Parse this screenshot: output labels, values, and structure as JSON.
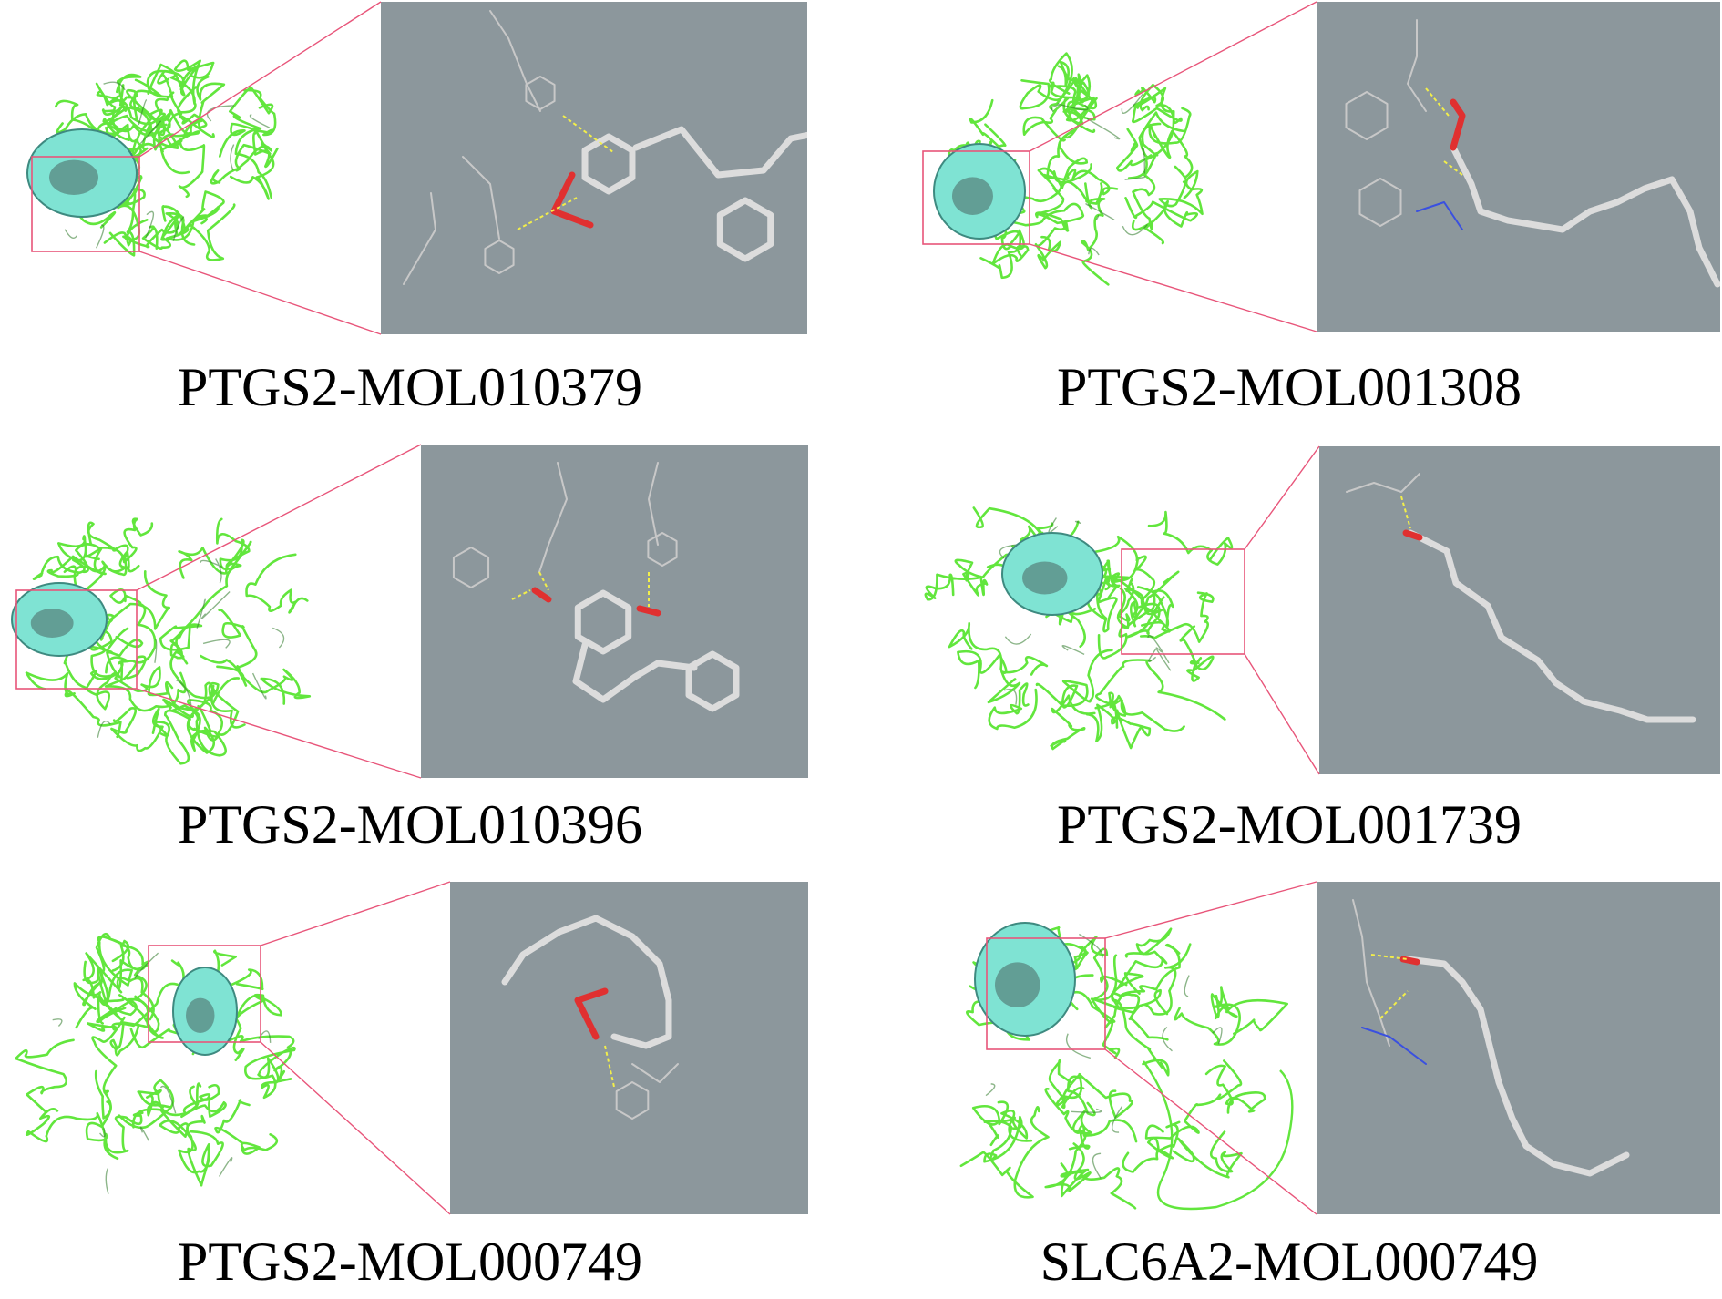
{
  "panels": [
    {
      "caption": "PTGS2-MOL010379",
      "pocket_color": "#7fe3d3",
      "ribbon_color": "#62e63d"
    },
    {
      "caption": "PTGS2-MOL001308",
      "pocket_color": "#7fe3d3",
      "ribbon_color": "#62e63d"
    },
    {
      "caption": "PTGS2-MOL010396",
      "pocket_color": "#7fe3d3",
      "ribbon_color": "#62e63d"
    },
    {
      "caption": "PTGS2-MOL001739",
      "pocket_color": "#7fe3d3",
      "ribbon_color": "#62e63d"
    },
    {
      "caption": "PTGS2-MOL000749",
      "pocket_color": "#7fe3d3",
      "ribbon_color": "#62e63d"
    },
    {
      "caption": "SLC6A2-MOL000749",
      "pocket_color": "#7fe3d3",
      "ribbon_color": "#62e63d"
    }
  ],
  "colors": {
    "zoom_background": "#8c979c",
    "zoom_guide_line": "#e8557a",
    "hbond": "#f2ee4a",
    "ligand": "#dcdcdc",
    "oxygen": "#e03030",
    "nitrogen": "#3a50e0",
    "hydrogen": "#6fe0cf"
  }
}
